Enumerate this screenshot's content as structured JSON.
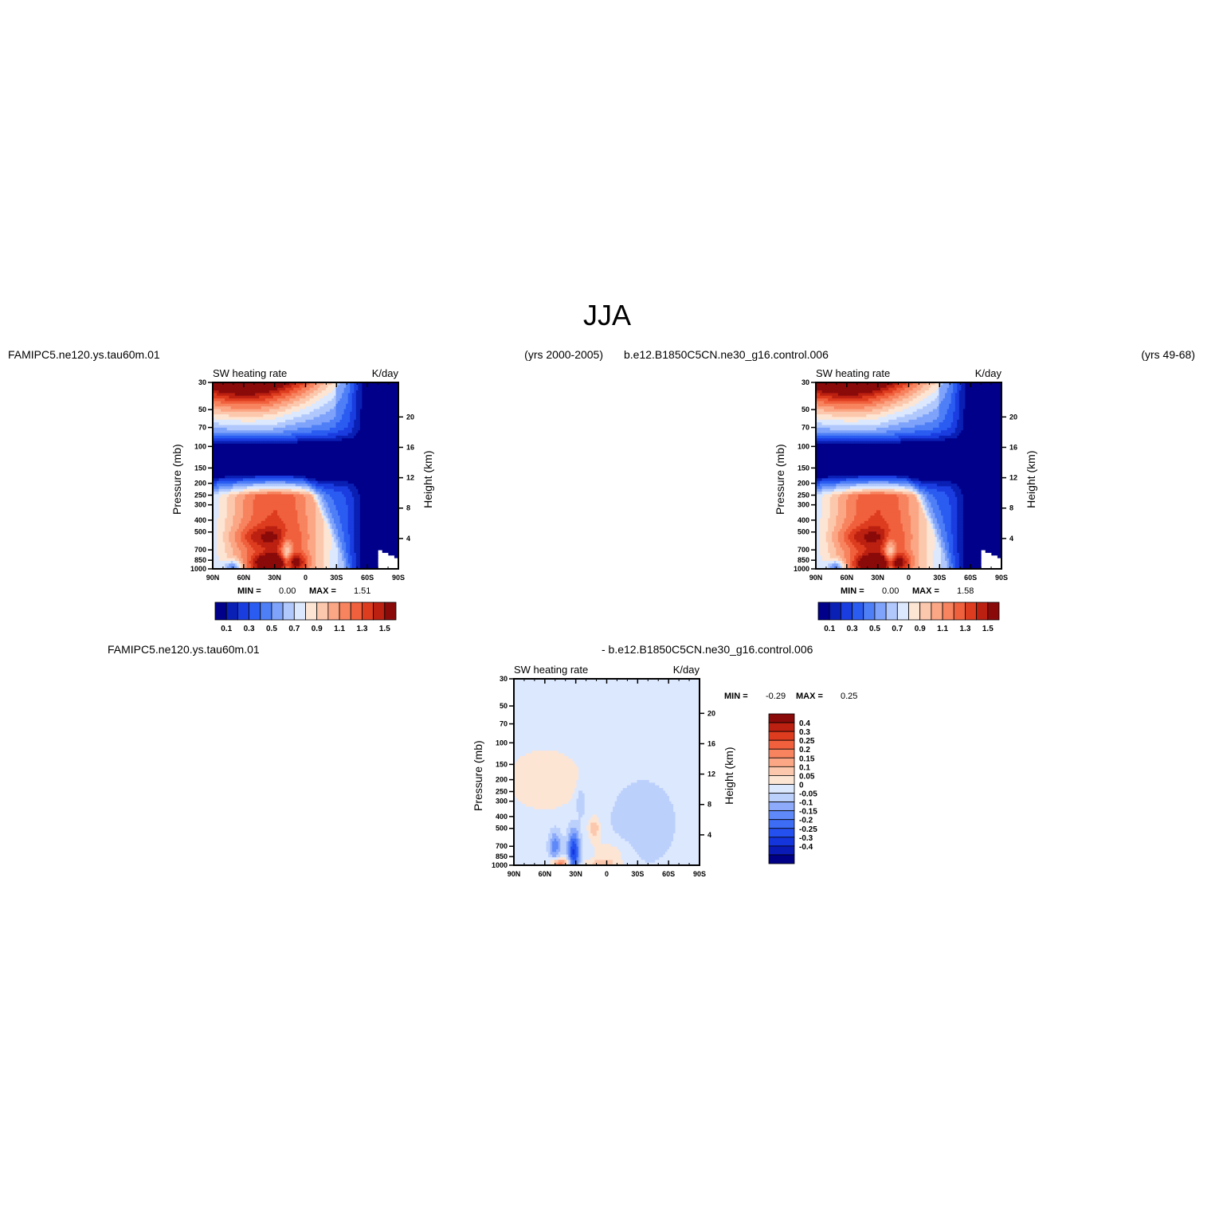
{
  "figure_title": "JJA",
  "colors": {
    "abs_scale": [
      "#00008b",
      "#0a1fb3",
      "#1a3de0",
      "#2b5cf2",
      "#4f7ff7",
      "#7fa3fa",
      "#b0c8fc",
      "#dce8fe",
      "#fde5d4",
      "#fcc8ad",
      "#fba685",
      "#f7835f",
      "#f0603c",
      "#dd3c1f",
      "#bb2010",
      "#8a0a0a"
    ],
    "diff_scale": [
      "#000087",
      "#0a1ab4",
      "#1434dc",
      "#2450f0",
      "#3d6cf5",
      "#5f89f8",
      "#8dabfa",
      "#bcd0fc",
      "#dce8fe",
      "#fde5d4",
      "#fcc8ad",
      "#fba685",
      "#f7835f",
      "#f0603c",
      "#dd3c1f",
      "#bb2010",
      "#8a0a0a"
    ]
  },
  "chart_data": [
    {
      "type": "heatmap",
      "case_name": "FAMIPC5.ne120.ys.tau60m.01",
      "years": "(yrs 2000-2005)",
      "title": "SW heating rate",
      "units": "K/day",
      "ylabel": "Pressure (mb)",
      "ylabel_right": "Height (km)",
      "x_ticks": [
        "90N",
        "60N",
        "30N",
        "0",
        "30S",
        "60S",
        "90S"
      ],
      "y_ticks": [
        "30",
        "50",
        "70",
        "100",
        "150",
        "200",
        "250",
        "300",
        "400",
        "500",
        "700",
        "850",
        "1000"
      ],
      "y_right_ticks": [
        "20",
        "16",
        "12",
        "8",
        "4"
      ],
      "min_label": "MIN =",
      "min_value": "0.00",
      "max_label": "MAX =",
      "max_value": "1.51",
      "colorbar_labels": [
        "0.1",
        "0.3",
        "0.5",
        "0.7",
        "0.9",
        "1.1",
        "1.3",
        "1.5"
      ],
      "levels": [
        0.1,
        0.2,
        0.3,
        0.4,
        0.5,
        0.6,
        0.7,
        0.8,
        0.9,
        1.0,
        1.1,
        1.2,
        1.3,
        1.4,
        1.5
      ]
    },
    {
      "type": "heatmap",
      "case_name": "b.e12.B1850C5CN.ne30_g16.control.006",
      "years": "(yrs 49-68)",
      "title": "SW heating rate",
      "units": "K/day",
      "ylabel": "Pressure (mb)",
      "ylabel_right": "Height (km)",
      "x_ticks": [
        "90N",
        "60N",
        "30N",
        "0",
        "30S",
        "60S",
        "90S"
      ],
      "y_ticks": [
        "30",
        "50",
        "70",
        "100",
        "150",
        "200",
        "250",
        "300",
        "400",
        "500",
        "700",
        "850",
        "1000"
      ],
      "y_right_ticks": [
        "20",
        "16",
        "12",
        "8",
        "4"
      ],
      "min_label": "MIN =",
      "min_value": "0.00",
      "max_label": "MAX =",
      "max_value": "1.58",
      "colorbar_labels": [
        "0.1",
        "0.3",
        "0.5",
        "0.7",
        "0.9",
        "1.1",
        "1.3",
        "1.5"
      ],
      "levels": [
        0.1,
        0.2,
        0.3,
        0.4,
        0.5,
        0.6,
        0.7,
        0.8,
        0.9,
        1.0,
        1.1,
        1.2,
        1.3,
        1.4,
        1.5
      ]
    },
    {
      "type": "heatmap",
      "case_name": "FAMIPC5.ne120.ys.tau60m.01",
      "case_name_2": "- b.e12.B1850C5CN.ne30_g16.control.006",
      "title": "SW heating rate",
      "units": "K/day",
      "ylabel": "Pressure (mb)",
      "ylabel_right": "Height (km)",
      "x_ticks": [
        "90N",
        "60N",
        "30N",
        "0",
        "30S",
        "60S",
        "90S"
      ],
      "y_ticks": [
        "30",
        "50",
        "70",
        "100",
        "150",
        "200",
        "250",
        "300",
        "400",
        "500",
        "700",
        "850",
        "1000"
      ],
      "y_right_ticks": [
        "20",
        "16",
        "12",
        "8",
        "4"
      ],
      "min_label": "MIN =",
      "min_value": "-0.29",
      "max_label": "MAX =",
      "max_value": "0.25",
      "colorbar_labels": [
        "0.4",
        "0.3",
        "0.25",
        "0.2",
        "0.15",
        "0.1",
        "0.05",
        "0",
        "-0.05",
        "-0.1",
        "-0.15",
        "-0.2",
        "-0.25",
        "-0.3",
        "-0.4"
      ],
      "levels": [
        -0.4,
        -0.3,
        -0.25,
        -0.2,
        -0.15,
        -0.1,
        -0.05,
        0,
        0.05,
        0.1,
        0.15,
        0.2,
        0.25,
        0.3,
        0.4
      ]
    }
  ]
}
